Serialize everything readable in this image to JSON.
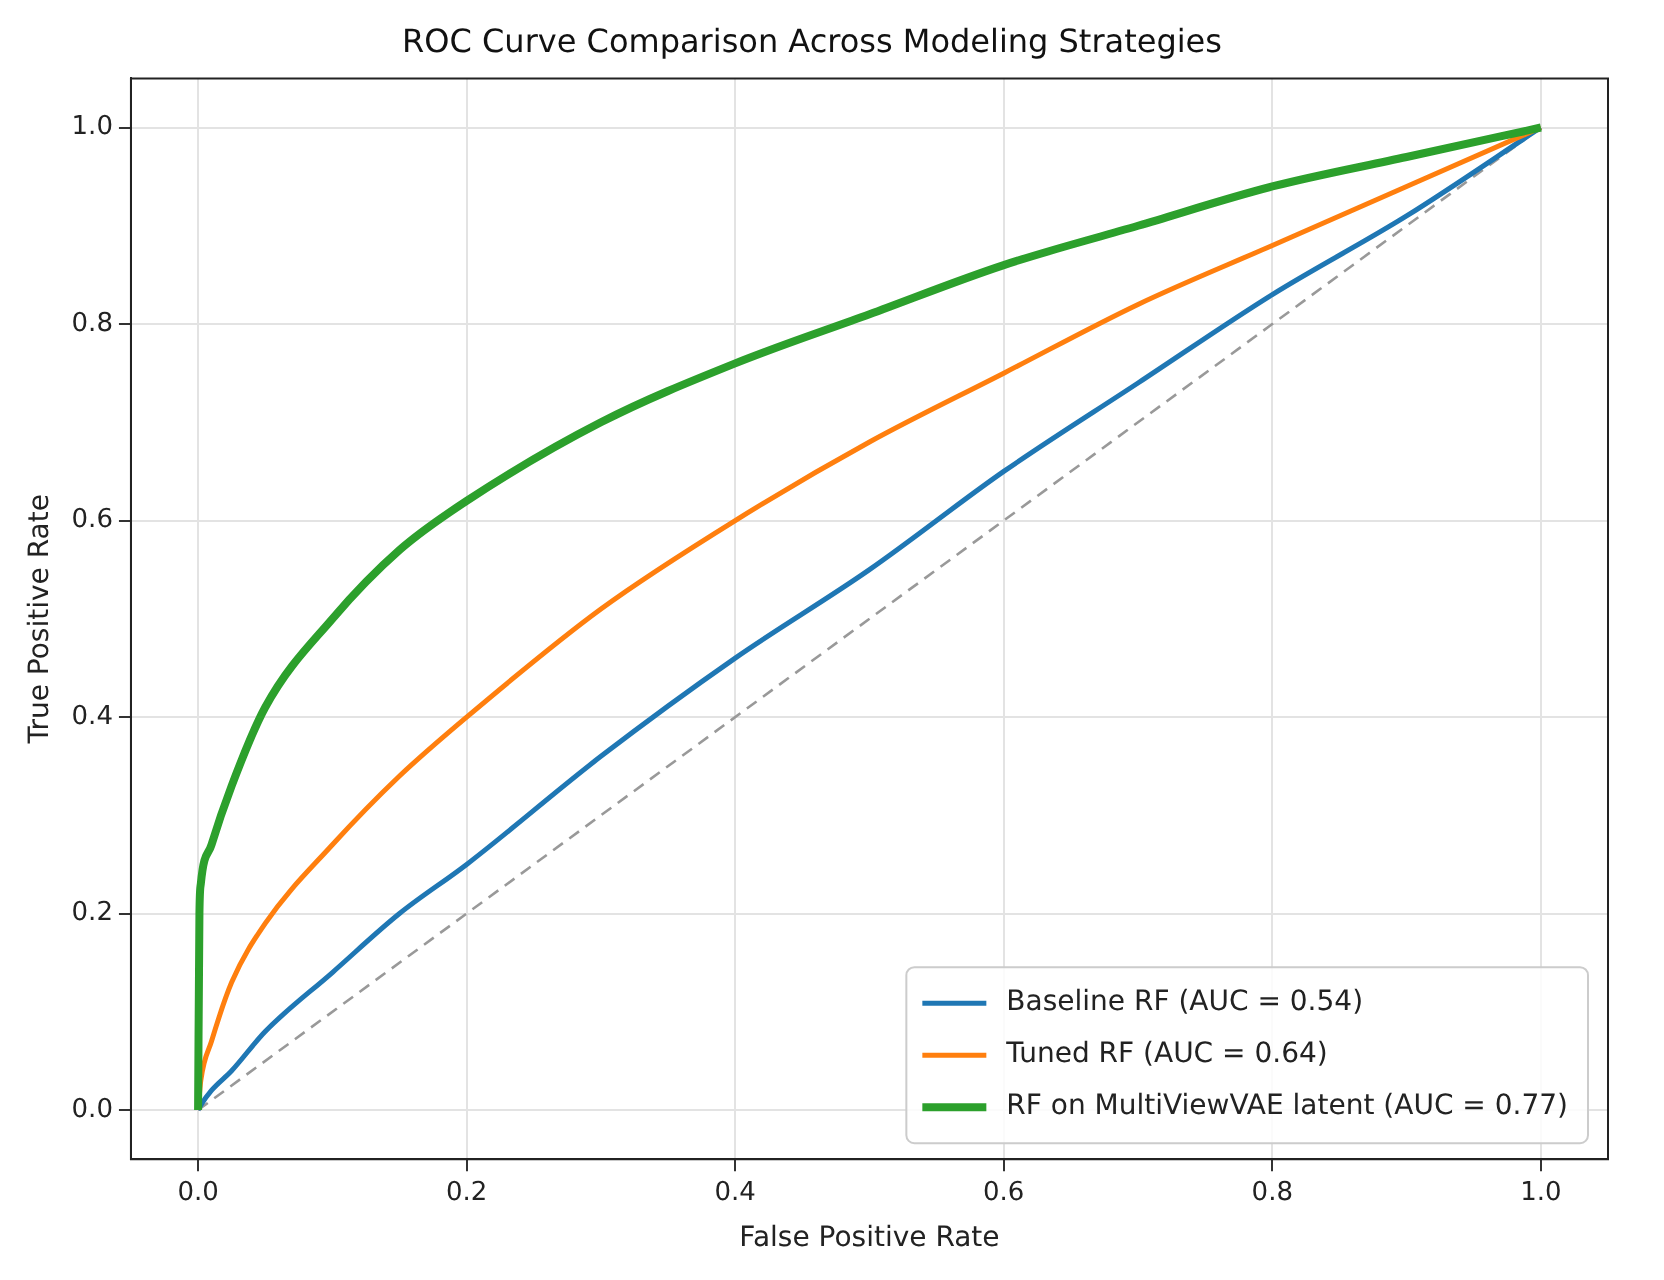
{
  "chart_data": {
    "type": "line",
    "title": "ROC Curve Comparison Across Modeling Strategies",
    "xlabel": "False Positive Rate",
    "ylabel": "True Positive Rate",
    "series": [
      {
        "name": "Baseline RF (AUC = 0.54)",
        "color": "#1f77b4",
        "x": [
          0,
          0.002,
          0.01,
          0.025,
          0.05,
          0.1,
          0.15,
          0.2,
          0.3,
          0.4,
          0.5,
          0.6,
          0.7,
          0.8,
          0.9,
          1.0
        ],
        "values": [
          0,
          0.005,
          0.02,
          0.04,
          0.08,
          0.14,
          0.2,
          0.25,
          0.36,
          0.46,
          0.55,
          0.65,
          0.74,
          0.83,
          0.91,
          1.0
        ]
      },
      {
        "name": "Tuned RF (AUC = 0.64)",
        "color": "#ff7f0e",
        "x": [
          0,
          0.002,
          0.01,
          0.025,
          0.05,
          0.1,
          0.15,
          0.2,
          0.3,
          0.4,
          0.5,
          0.6,
          0.7,
          0.8,
          0.9,
          1.0
        ],
        "values": [
          0,
          0.03,
          0.07,
          0.13,
          0.19,
          0.27,
          0.34,
          0.4,
          0.51,
          0.6,
          0.68,
          0.75,
          0.82,
          0.88,
          0.94,
          1.0
        ]
      },
      {
        "name": "RF on MultiViewVAE latent (AUC = 0.77)",
        "color": "#2ca02c",
        "x": [
          0,
          0.001,
          0.002,
          0.01,
          0.025,
          0.05,
          0.1,
          0.15,
          0.2,
          0.3,
          0.4,
          0.5,
          0.6,
          0.7,
          0.8,
          0.9,
          1.0
        ],
        "values": [
          0,
          0.2,
          0.23,
          0.27,
          0.33,
          0.41,
          0.5,
          0.57,
          0.62,
          0.7,
          0.76,
          0.81,
          0.86,
          0.9,
          0.94,
          0.97,
          1.0
        ]
      },
      {
        "color": "#999999",
        "line_style": "dashed",
        "x": [
          0,
          1
        ],
        "values": [
          0,
          1
        ]
      }
    ],
    "xlim": [
      -0.05,
      1.05
    ],
    "ylim": [
      -0.05,
      1.05
    ],
    "xticks": [
      {
        "value": 0,
        "label": "0.0"
      },
      0.2,
      0.4,
      0.6,
      0.8,
      {
        "value": 1,
        "label": "1.0"
      }
    ],
    "yticks": [
      {
        "value": 0,
        "label": "0.0"
      },
      0.2,
      0.4,
      0.6,
      0.8,
      {
        "value": 1,
        "label": "1.0"
      }
    ],
    "grid": true,
    "legend": "bottom right",
    "marker": "none",
    "line_style": "solid"
  }
}
